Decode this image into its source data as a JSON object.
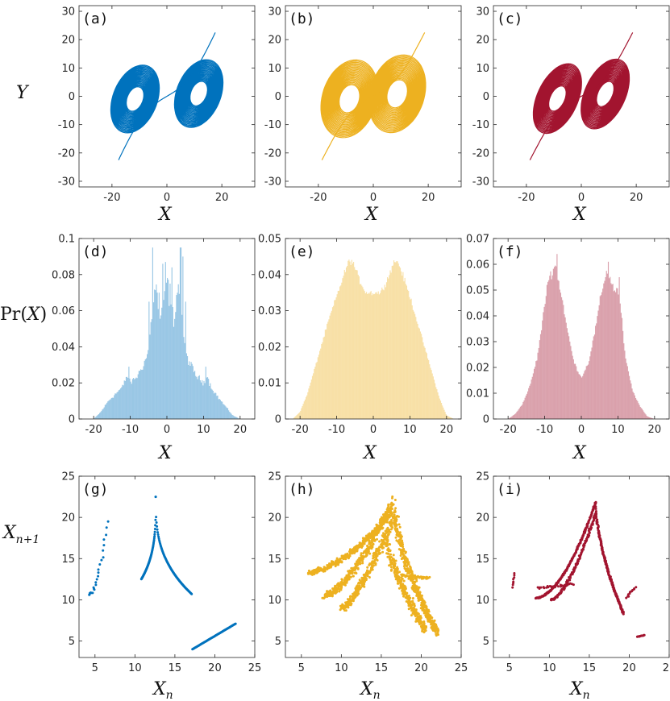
{
  "colors": {
    "blue": "#0072BD",
    "yellow": "#EDB120",
    "red": "#A2142F",
    "axis": "#262626"
  },
  "row_labels": {
    "row1": "Y",
    "row2_pre": "Pr(",
    "row2_var": "X",
    "row2_post": ")",
    "row3_var": "X",
    "row3_sub": "n+1"
  },
  "xlabels": {
    "row1": "X",
    "row2": "X",
    "row3_var": "X",
    "row3_sub": "n"
  },
  "chart_data": [
    {
      "id": "a",
      "label": "(a)",
      "type": "line",
      "color": "blue",
      "xlim": [
        -32,
        32
      ],
      "ylim": [
        -32,
        32
      ],
      "xticks": [
        -20,
        0,
        20
      ],
      "yticks": [
        -30,
        -20,
        -10,
        0,
        10,
        20,
        30
      ],
      "xlabel": "X",
      "ylabel": "Y",
      "attractor": {
        "A": 16,
        "Cy": 12,
        "Cx": 4,
        "B": 11,
        "T": 30,
        "scale": 1.0
      }
    },
    {
      "id": "b",
      "label": "(b)",
      "type": "line",
      "color": "yellow",
      "xlim": [
        -32,
        32
      ],
      "ylim": [
        -32,
        32
      ],
      "xticks": [
        -20,
        0,
        20
      ],
      "yticks": [
        -30,
        -20,
        -10,
        0,
        10,
        20,
        30
      ],
      "xlabel": "X",
      "ylabel": "Y",
      "attractor": {
        "A": 17,
        "Cy": 11,
        "Cx": 3,
        "B": 13,
        "T": 30,
        "scale": 1.05
      }
    },
    {
      "id": "c",
      "label": "(c)",
      "type": "line",
      "color": "red",
      "xlim": [
        -32,
        32
      ],
      "ylim": [
        -32,
        32
      ],
      "xticks": [
        -20,
        0,
        20
      ],
      "yticks": [
        -30,
        -20,
        -10,
        0,
        10,
        20,
        30
      ],
      "xlabel": "X",
      "ylabel": "Y",
      "attractor": {
        "A": 17,
        "Cy": 10,
        "Cx": 3,
        "B": 10,
        "T": 30,
        "scale": 1.0
      }
    },
    {
      "id": "d",
      "label": "(d)",
      "type": "bar",
      "color": "blue",
      "xlim": [
        -24,
        24
      ],
      "ylim": [
        0,
        0.1
      ],
      "xticks": [
        -20,
        -10,
        0,
        10,
        20
      ],
      "yticks": [
        0,
        0.02,
        0.04,
        0.06,
        0.08,
        0.1
      ],
      "ytick_labels": [
        "0",
        "0.02",
        "0.04",
        "0.06",
        "0.08",
        "0.1"
      ],
      "xlabel": "X",
      "ylabel": "Pr(X)",
      "profile": {
        "x": [
          -20,
          -18,
          -16,
          -14,
          -12,
          -11,
          -10,
          -8,
          -6,
          -5,
          -4,
          -3,
          -2,
          -1,
          0,
          1,
          2,
          3,
          4,
          5,
          6,
          8,
          10,
          11,
          12,
          14,
          16,
          18,
          20
        ],
        "y": [
          0,
          0.004,
          0.01,
          0.014,
          0.018,
          0.024,
          0.02,
          0.024,
          0.032,
          0.038,
          0.06,
          0.075,
          0.055,
          0.062,
          0.078,
          0.062,
          0.055,
          0.075,
          0.062,
          0.038,
          0.032,
          0.024,
          0.02,
          0.024,
          0.018,
          0.012,
          0.007,
          0.002,
          0
        ]
      },
      "spikes": [
        [
          -4,
          0.095
        ],
        [
          -1.3,
          0.086
        ],
        [
          -0.4,
          0.087
        ],
        [
          1.3,
          0.084
        ],
        [
          3.6,
          0.095
        ],
        [
          4.3,
          0.09
        ],
        [
          -5,
          0.065
        ],
        [
          5,
          0.065
        ],
        [
          -10.6,
          0.029
        ],
        [
          10.6,
          0.029
        ],
        [
          0.8,
          0.075
        ],
        [
          -2.2,
          0.07
        ]
      ],
      "noise": 0.25
    },
    {
      "id": "e",
      "label": "(e)",
      "type": "bar",
      "color": "yellow",
      "xlim": [
        -24,
        24
      ],
      "ylim": [
        0,
        0.05
      ],
      "xticks": [
        -20,
        -10,
        0,
        10,
        20
      ],
      "yticks": [
        0,
        0.01,
        0.02,
        0.03,
        0.04,
        0.05
      ],
      "ytick_labels": [
        "0",
        "0.01",
        "0.02",
        "0.03",
        "0.04",
        "0.05"
      ],
      "xlabel": "X",
      "ylabel": "Pr(X)",
      "profile": {
        "x": [
          -22,
          -20,
          -18,
          -16,
          -14,
          -12,
          -10,
          -8,
          -7,
          -6,
          -5,
          -4,
          -2,
          0,
          2,
          4,
          5,
          6,
          7,
          8,
          10,
          12,
          14,
          16,
          18,
          20,
          22
        ],
        "y": [
          0,
          0.002,
          0.007,
          0.014,
          0.021,
          0.028,
          0.034,
          0.04,
          0.043,
          0.044,
          0.042,
          0.039,
          0.035,
          0.035,
          0.035,
          0.039,
          0.042,
          0.044,
          0.043,
          0.04,
          0.034,
          0.027,
          0.02,
          0.013,
          0.006,
          0.001,
          0
        ]
      },
      "spikes": [],
      "noise": 0.07
    },
    {
      "id": "f",
      "label": "(f)",
      "type": "bar",
      "color": "red",
      "xlim": [
        -24,
        24
      ],
      "ylim": [
        0,
        0.07
      ],
      "xticks": [
        -20,
        -10,
        0,
        10,
        20
      ],
      "yticks": [
        0,
        0.01,
        0.02,
        0.03,
        0.04,
        0.05,
        0.06,
        0.07
      ],
      "ytick_labels": [
        "0",
        "0.01",
        "0.02",
        "0.03",
        "0.04",
        "0.05",
        "0.06",
        "0.07"
      ],
      "xlabel": "X",
      "ylabel": "Pr(X)",
      "profile": {
        "x": [
          -20,
          -18,
          -16,
          -14,
          -12,
          -11,
          -10,
          -9,
          -8,
          -7,
          -6,
          -5,
          -4,
          -2,
          0,
          2,
          4,
          5,
          6,
          7,
          8,
          9,
          10,
          11,
          12,
          14,
          16,
          18,
          20
        ],
        "y": [
          0,
          0.002,
          0.006,
          0.013,
          0.024,
          0.034,
          0.044,
          0.054,
          0.057,
          0.06,
          0.052,
          0.045,
          0.036,
          0.022,
          0.016,
          0.022,
          0.036,
          0.045,
          0.052,
          0.058,
          0.054,
          0.05,
          0.05,
          0.04,
          0.024,
          0.011,
          0.005,
          0.001,
          0
        ]
      },
      "spikes": [
        [
          -6.7,
          0.064
        ],
        [
          -9.4,
          0.052
        ],
        [
          7.2,
          0.061
        ],
        [
          10.2,
          0.055
        ]
      ],
      "noise": 0.1
    },
    {
      "id": "g",
      "label": "(g)",
      "type": "scatter",
      "color": "blue",
      "xlim": [
        3,
        25
      ],
      "ylim": [
        3,
        25
      ],
      "xticks": [
        5,
        10,
        15,
        20,
        25
      ],
      "yticks": [
        5,
        10,
        15,
        20,
        25
      ],
      "xlabel": "X_n",
      "ylabel": "X_n+1",
      "segments": [
        {
          "kind": "arc",
          "x0": 4.2,
          "y0": 10.7,
          "x1": 6.5,
          "y1": 19.6,
          "n": 24,
          "power": 2.2,
          "jitter": 0.25
        },
        {
          "kind": "arc",
          "x0": 12.6,
          "y0": 22.5,
          "x1": 10.8,
          "y1": 12.5,
          "n": 70,
          "power": 0.3,
          "jitter": 0.0
        },
        {
          "kind": "arc",
          "x0": 12.6,
          "y0": 22.5,
          "x1": 17.1,
          "y1": 10.7,
          "n": 90,
          "power": 0.35,
          "jitter": 0.0
        },
        {
          "kind": "line",
          "x0": 17.2,
          "y0": 4.0,
          "x1": 22.6,
          "y1": 7.1,
          "n": 70,
          "jitter": 0.0
        }
      ]
    },
    {
      "id": "h",
      "label": "(h)",
      "type": "scatter",
      "color": "yellow",
      "xlim": [
        3,
        25
      ],
      "ylim": [
        3,
        25
      ],
      "xticks": [
        5,
        10,
        15,
        20,
        25
      ],
      "yticks": [
        5,
        10,
        15,
        20,
        25
      ],
      "xlabel": "X_n",
      "ylabel": "X_n+1",
      "segments": [
        {
          "kind": "arc",
          "x0": 6.0,
          "y0": 13.3,
          "x1": 16.2,
          "y1": 20.5,
          "n": 380,
          "power": 1.6,
          "jitter": 0.5
        },
        {
          "kind": "arc",
          "x0": 8.0,
          "y0": 10.5,
          "x1": 16.2,
          "y1": 21.5,
          "n": 380,
          "power": 1.5,
          "jitter": 0.6
        },
        {
          "kind": "arc",
          "x0": 10.0,
          "y0": 9.0,
          "x1": 16.6,
          "y1": 20.0,
          "n": 300,
          "power": 1.4,
          "jitter": 0.6
        },
        {
          "kind": "arc",
          "x0": 16.5,
          "y0": 22.5,
          "x1": 22.0,
          "y1": 6.0,
          "n": 420,
          "power": 0.6,
          "jitter": 0.6
        },
        {
          "kind": "arc",
          "x0": 15.5,
          "y0": 18.0,
          "x1": 20.5,
          "y1": 6.3,
          "n": 300,
          "power": 0.7,
          "jitter": 0.6
        },
        {
          "kind": "line",
          "x0": 17.5,
          "y0": 13.0,
          "x1": 21.0,
          "y1": 12.6,
          "n": 50,
          "jitter": 0.2
        }
      ]
    },
    {
      "id": "i",
      "label": "(i)",
      "type": "scatter",
      "color": "red",
      "xlim": [
        3,
        25
      ],
      "ylim": [
        3,
        25
      ],
      "xticks": [
        5,
        10,
        15,
        20,
        25
      ],
      "yticks": [
        5,
        10,
        15,
        20,
        25
      ],
      "xlabel": "X_n",
      "ylabel": "X_n+1",
      "segments": [
        {
          "kind": "arc",
          "x0": 8.3,
          "y0": 10.2,
          "x1": 15.8,
          "y1": 21.8,
          "n": 240,
          "power": 1.8,
          "jitter": 0.12
        },
        {
          "kind": "arc",
          "x0": 10.2,
          "y0": 10.0,
          "x1": 15.8,
          "y1": 20.5,
          "n": 160,
          "power": 1.6,
          "jitter": 0.2
        },
        {
          "kind": "arc",
          "x0": 15.8,
          "y0": 21.8,
          "x1": 19.3,
          "y1": 8.3,
          "n": 220,
          "power": 0.6,
          "jitter": 0.12
        },
        {
          "kind": "line",
          "x0": 8.5,
          "y0": 11.4,
          "x1": 13.0,
          "y1": 11.9,
          "n": 30,
          "jitter": 0.3
        },
        {
          "kind": "line",
          "x0": 5.4,
          "y0": 11.5,
          "x1": 5.6,
          "y1": 13.2,
          "n": 8,
          "jitter": 0.1
        },
        {
          "kind": "line",
          "x0": 19.6,
          "y0": 10.3,
          "x1": 20.8,
          "y1": 11.5,
          "n": 12,
          "jitter": 0.15
        },
        {
          "kind": "line",
          "x0": 21.0,
          "y0": 5.5,
          "x1": 21.9,
          "y1": 5.7,
          "n": 14,
          "jitter": 0.05
        }
      ]
    }
  ]
}
